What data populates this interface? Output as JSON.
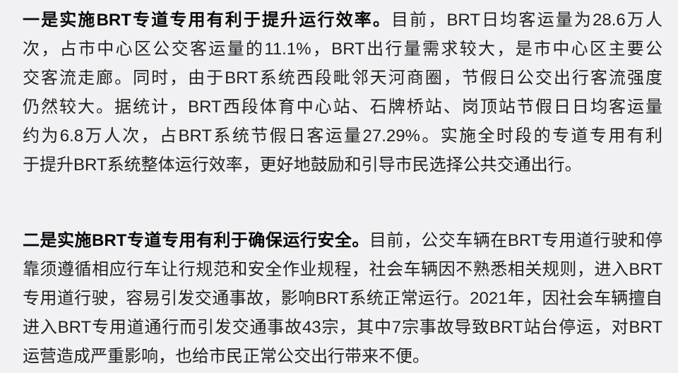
{
  "page": {
    "background_color": "#f1f1f3",
    "text_color": "#212121",
    "bold_text_color": "#0a0a0a"
  },
  "document": {
    "paragraphs": [
      {
        "lead": "一是实施BRT专道专用有利于提升运行效率。",
        "lines": [
          {
            "segments": [
              {
                "text": "一是实施BRT专道专用有利于提升运行效率。",
                "bold": true
              },
              {
                "text": "目前，BRT日均客运量为28.6万人",
                "bold": false
              }
            ]
          },
          {
            "segments": [
              {
                "text": "次，占市中心区公交客运量的11.1%，BRT出行量需求较大，是市中心区主要公",
                "bold": false
              }
            ]
          },
          {
            "segments": [
              {
                "text": "交客流走廊。同时，由于BRT系统西段毗邻天河商圈，节假日公交出行客流强度",
                "bold": false
              }
            ]
          },
          {
            "segments": [
              {
                "text": "仍然较大。据统计，BRT西段体育中心站、石牌桥站、岗顶站节假日日均客运量",
                "bold": false
              }
            ]
          },
          {
            "segments": [
              {
                "text": "约为6.8万人次，占BRT系统节假日客运量27.29%。实施全时段的专道专用有利",
                "bold": false
              }
            ]
          },
          {
            "segments": [
              {
                "text": "于提升BRT系统整体运行效率，更好地鼓励和引导市民选择公共交通出行。",
                "bold": false
              }
            ]
          }
        ]
      },
      {
        "lead": "二是实施BRT专道专用有利于确保运行安全。",
        "lines": [
          {
            "segments": [
              {
                "text": "二是实施BRT专道专用有利于确保运行安全。",
                "bold": true
              },
              {
                "text": "目前，公交车辆在BRT专用道行驶和停",
                "bold": false
              }
            ]
          },
          {
            "segments": [
              {
                "text": "靠须遵循相应行车让行规范和安全作业规程，社会车辆因不熟悉相关规则，进入BRT",
                "bold": false
              }
            ]
          },
          {
            "segments": [
              {
                "text": "专用道行驶，容易引发交通事故，影响BRT系统正常运行。2021年，因社会车辆擅自",
                "bold": false
              }
            ]
          },
          {
            "segments": [
              {
                "text": "进入BRT专用道通行而引发交通事故43宗，其中7宗事故导致BRT站台停运，对BRT",
                "bold": false
              }
            ]
          },
          {
            "segments": [
              {
                "text": "运营造成严重影响，也给市民正常公交出行带来不便。",
                "bold": false
              }
            ]
          }
        ]
      }
    ]
  }
}
